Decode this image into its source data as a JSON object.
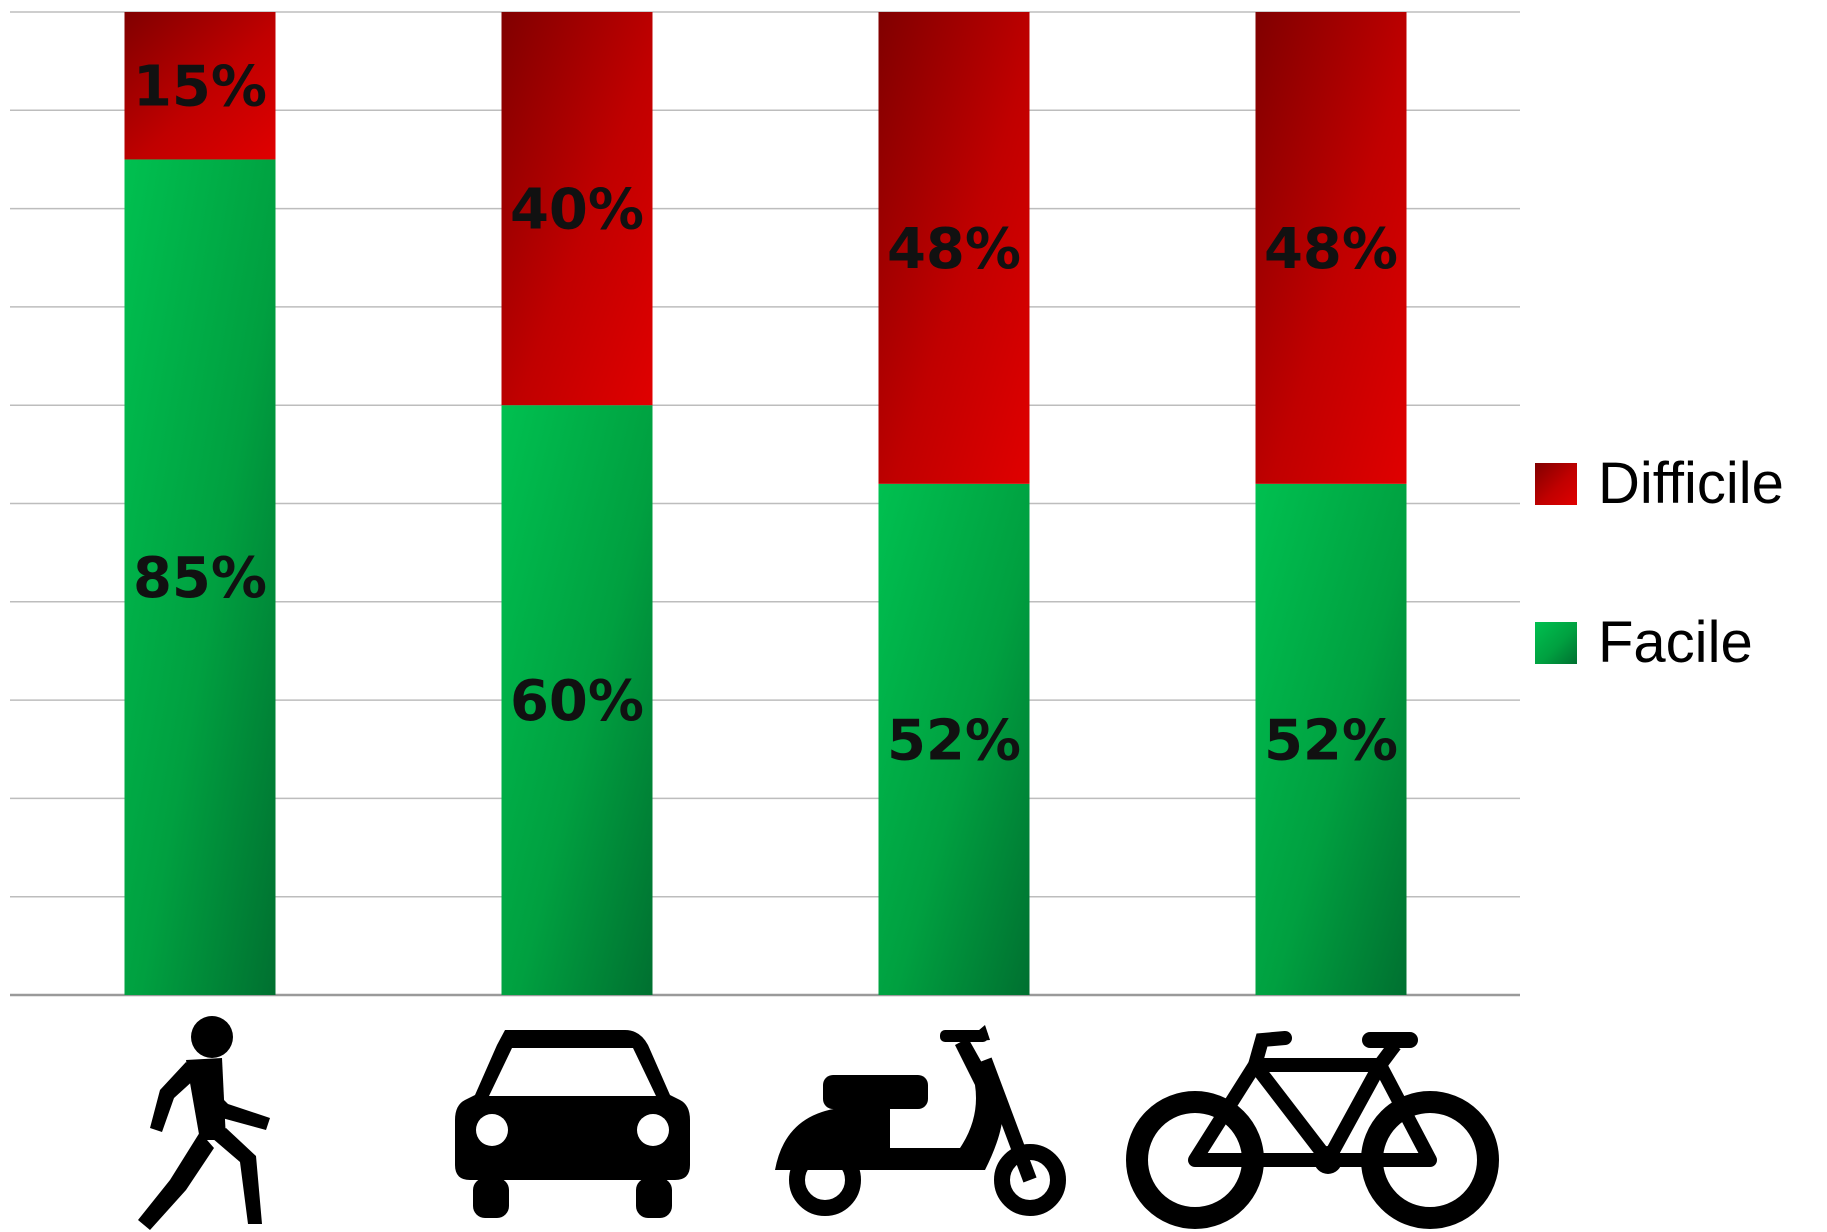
{
  "chart_data": {
    "type": "bar",
    "stacked": true,
    "categories": [
      "walking",
      "car",
      "scooter",
      "bicycle"
    ],
    "category_icons": [
      "walking-person-icon",
      "car-icon",
      "scooter-icon",
      "bicycle-icon"
    ],
    "series": [
      {
        "name": "Facile",
        "values": [
          85,
          60,
          52,
          52
        ],
        "labels": [
          "85%",
          "60%",
          "52%",
          "52%"
        ],
        "color": "#00b050"
      },
      {
        "name": "Difficile",
        "values": [
          15,
          40,
          48,
          48
        ],
        "labels": [
          "15%",
          "40%",
          "48%",
          "48%"
        ],
        "color": "#c00000"
      }
    ],
    "ylim": [
      0,
      100
    ],
    "grid": true,
    "gridline_count": 10,
    "legend_position": "right"
  },
  "legend": {
    "items": [
      {
        "label": "Difficile",
        "color": "#c00000"
      },
      {
        "label": "Facile",
        "color": "#00b050"
      }
    ]
  }
}
